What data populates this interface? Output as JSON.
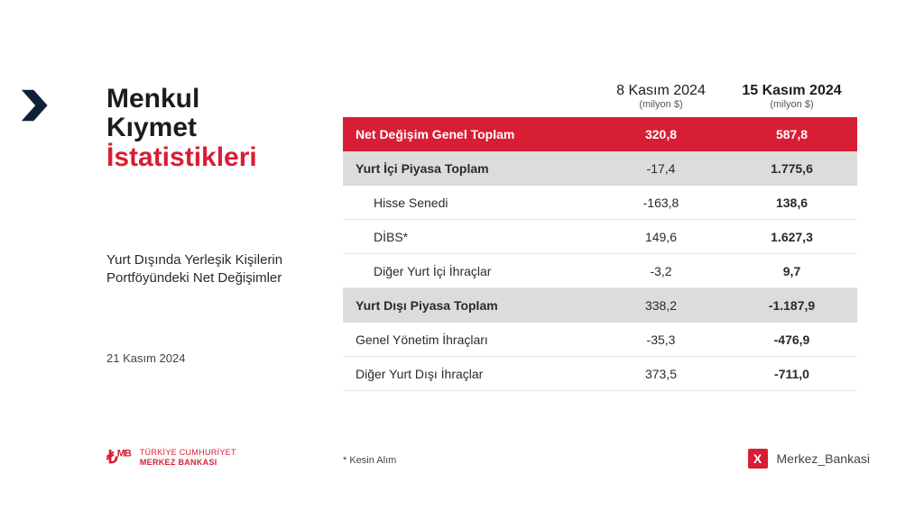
{
  "colors": {
    "accent_red": "#d81e34",
    "gray_row": "#dcdcdc",
    "text_primary": "#1c1c1c",
    "text_body": "#2a2a2a",
    "background": "#ffffff",
    "row_border": "#e8e8e8"
  },
  "typography": {
    "title_fontsize_pt": 22,
    "body_fontsize_pt": 11,
    "table_fontsize_pt": 10
  },
  "left": {
    "title_line1": "Menkul",
    "title_line2": "Kıymet",
    "title_line3": "İstatistikleri",
    "subtitle": "Yurt Dışında Yerleşik Kişilerin Portföyündeki Net Değişimler",
    "date": "21 Kasım 2024"
  },
  "table": {
    "type": "table",
    "col1": {
      "date": "8 Kasım 2024",
      "unit": "(milyon $)",
      "bold": false
    },
    "col2": {
      "date": "15 Kasım 2024",
      "unit": "(milyon $)",
      "bold": true
    },
    "rows": [
      {
        "style": "red",
        "label": "Net Değişim Genel Toplam",
        "v1": "320,8",
        "v2": "587,8"
      },
      {
        "style": "gray",
        "label": "Yurt İçi Piyasa Toplam",
        "v1": "-17,4",
        "v2": "1.775,6"
      },
      {
        "style": "sub",
        "label": "Hisse Senedi",
        "v1": "-163,8",
        "v2": "138,6"
      },
      {
        "style": "sub",
        "label": "DİBS*",
        "v1": "149,6",
        "v2": "1.627,3"
      },
      {
        "style": "sub",
        "label": "Diğer Yurt İçi İhraçlar",
        "v1": "-3,2",
        "v2": "9,7"
      },
      {
        "style": "gray",
        "label": "Yurt Dışı Piyasa Toplam",
        "v1": "338,2",
        "v2": "-1.187,9"
      },
      {
        "style": "plain",
        "label": "Genel Yönetim İhraçları",
        "v1": "-35,3",
        "v2": "-476,9"
      },
      {
        "style": "plain",
        "label": "Diğer Yurt Dışı İhraçlar",
        "v1": "373,5",
        "v2": "-711,0"
      }
    ],
    "footnote": "* Kesin Alım"
  },
  "brand": {
    "line1": "TÜRKİYE CUMHURİYET",
    "line2": "MERKEZ BANKASI"
  },
  "social": {
    "handle": "Merkez_Bankasi",
    "platform_glyph": "X"
  }
}
